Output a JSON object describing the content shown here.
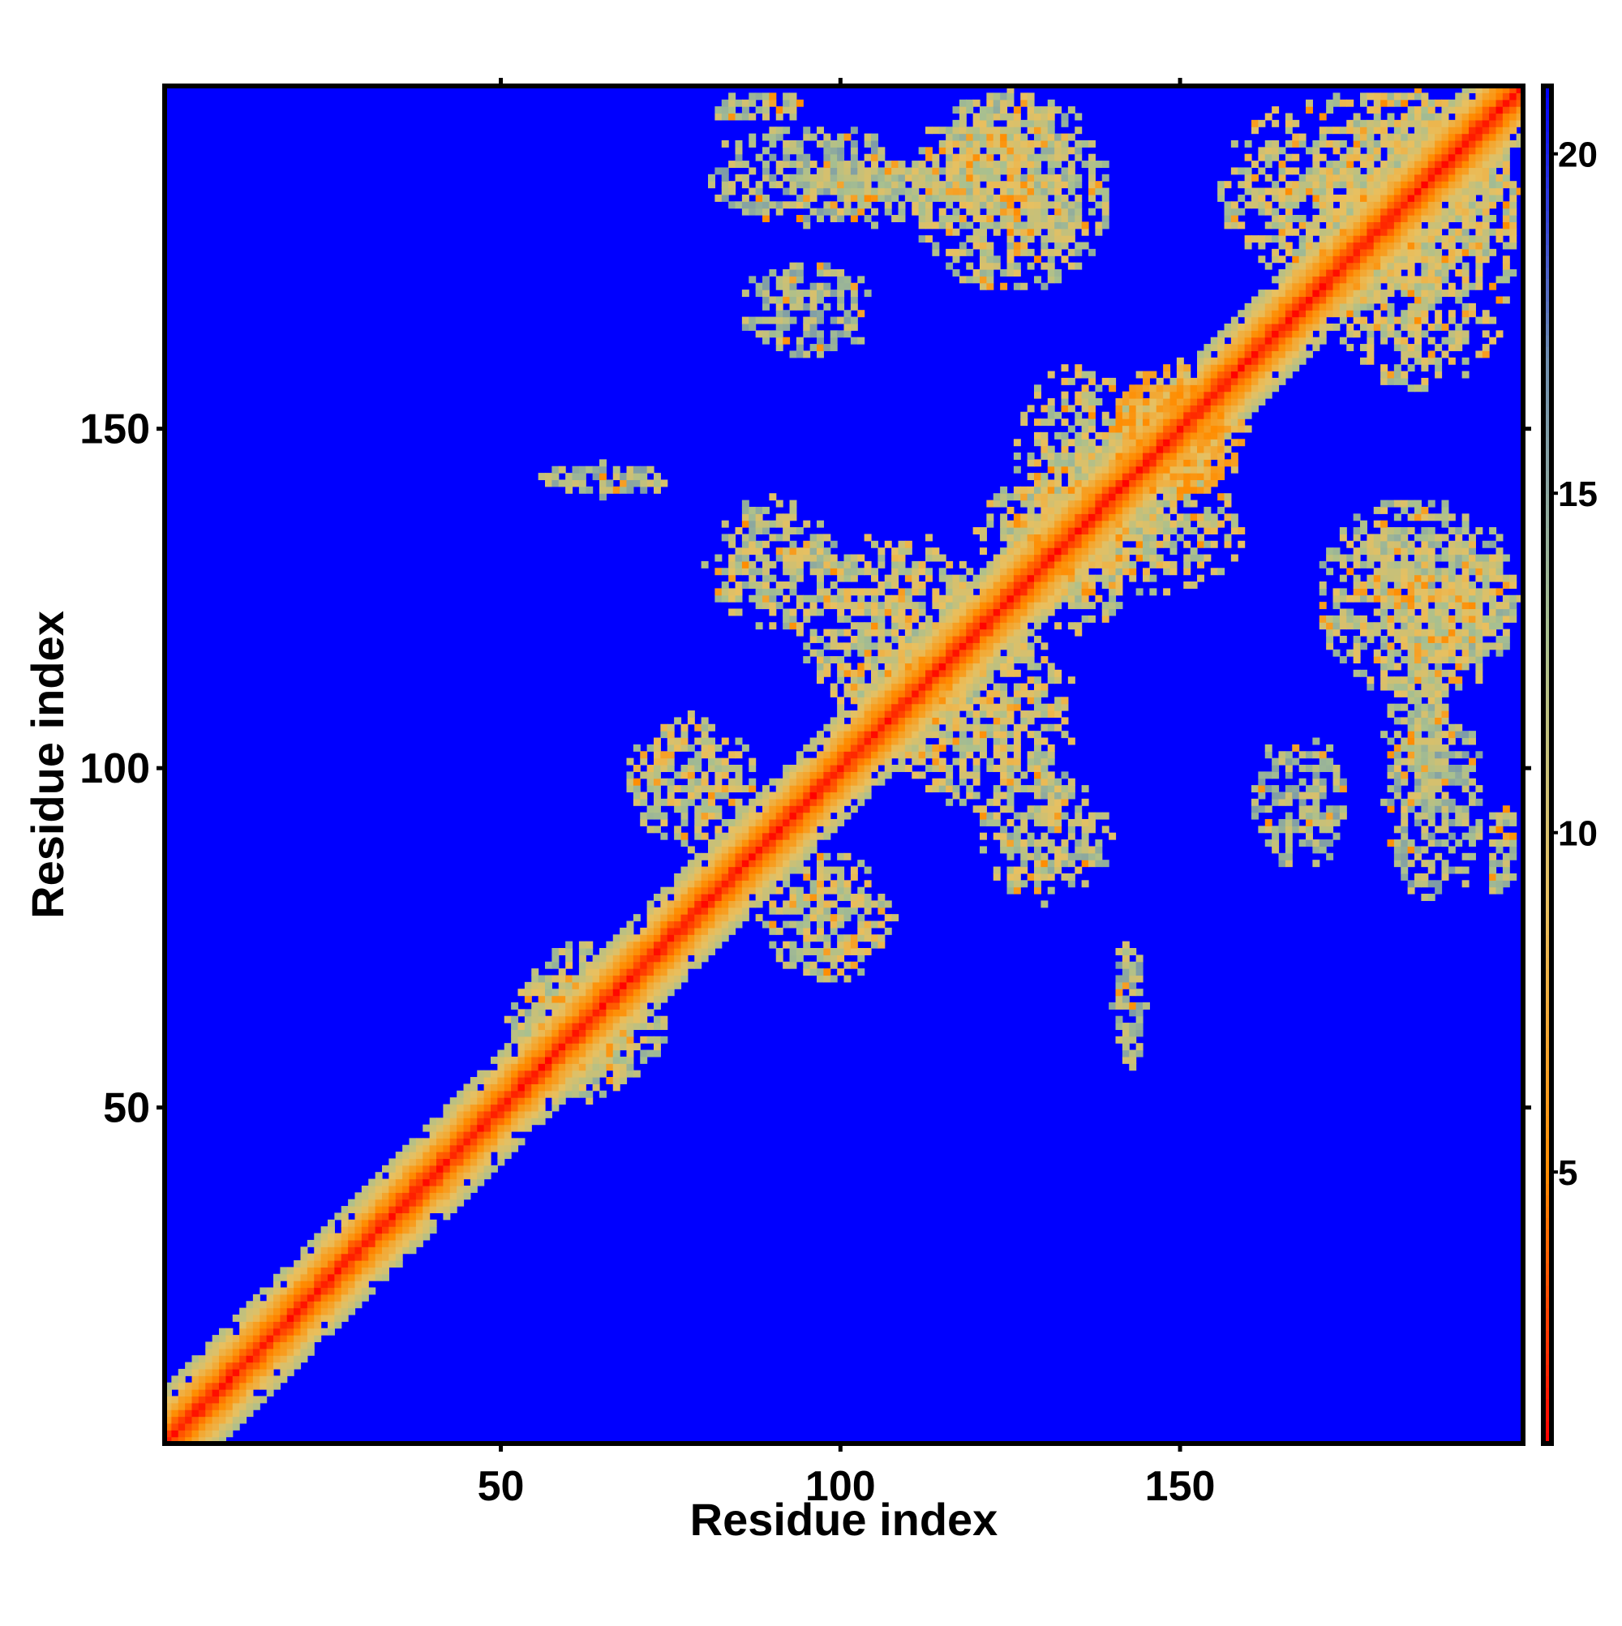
{
  "chart_data": {
    "type": "heatmap",
    "title": "",
    "xlabel": "Residue index",
    "ylabel": "Residue index",
    "n_residues": 200,
    "xlim": [
      1,
      200
    ],
    "ylim": [
      1,
      200
    ],
    "xticks": [
      50,
      100,
      150
    ],
    "yticks": [
      50,
      100,
      150
    ],
    "colorbar": {
      "range": [
        1,
        21
      ],
      "ticks": [
        5,
        10,
        15,
        20
      ],
      "colors": [
        "#ff0000",
        "#ff8c00",
        "#e8c060",
        "#a8c090",
        "#6f8fb0",
        "#0000ff"
      ]
    },
    "background_value": 21,
    "diagonal_band_width": 8,
    "contact_patches": [
      {
        "x": [
          68,
          88
        ],
        "y": [
          88,
          108
        ],
        "level": 11
      },
      {
        "x": [
          105,
          135
        ],
        "y": [
          94,
          122
        ],
        "level": 11
      },
      {
        "x": [
          120,
          140
        ],
        "y": [
          80,
          100
        ],
        "level": 12
      },
      {
        "x": [
          52,
          72
        ],
        "y": [
          50,
          75
        ],
        "level": 12
      },
      {
        "x": [
          55,
          75
        ],
        "y": [
          140,
          145
        ],
        "level": 13
      },
      {
        "x": [
          125,
          145
        ],
        "y": [
          120,
          160
        ],
        "level": 11
      },
      {
        "x": [
          140,
          160
        ],
        "y": [
          140,
          160
        ],
        "level": 8
      },
      {
        "x": [
          115,
          135
        ],
        "y": [
          175,
          200
        ],
        "level": 11
      },
      {
        "x": [
          90,
          120
        ],
        "y": [
          180,
          190
        ],
        "level": 12
      },
      {
        "x": [
          80,
          95
        ],
        "y": [
          195,
          200
        ],
        "level": 13
      },
      {
        "x": [
          155,
          200
        ],
        "y": [
          170,
          200
        ],
        "level": 11
      },
      {
        "x": [
          170,
          200
        ],
        "y": [
          110,
          140
        ],
        "level": 12
      },
      {
        "x": [
          180,
          195
        ],
        "y": [
          80,
          110
        ],
        "level": 13
      },
      {
        "x": [
          160,
          175
        ],
        "y": [
          85,
          105
        ],
        "level": 13
      }
    ]
  },
  "axes": {
    "x_title": "Residue index",
    "y_title": "Residue index"
  }
}
